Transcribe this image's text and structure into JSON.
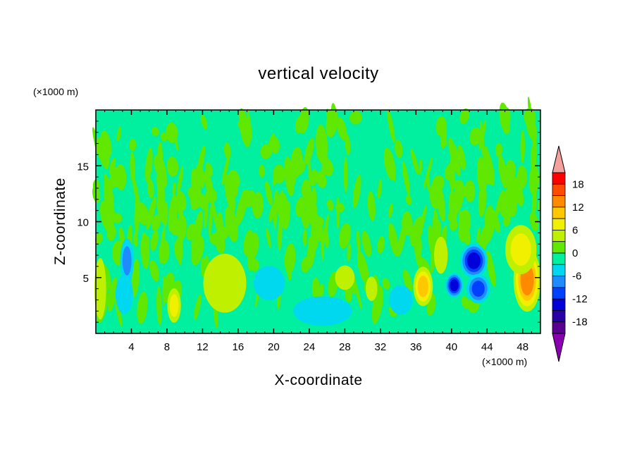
{
  "chart_data": {
    "type": "heatmap",
    "title": "vertical velocity",
    "xlabel": "X-coordinate",
    "ylabel": "Z-coordinate",
    "x_unit_label": "(×1000 m)",
    "y_unit_label": "(×1000 m)",
    "xlim": [
      0,
      50
    ],
    "ylim": [
      0,
      20
    ],
    "x_ticks": [
      4,
      8,
      12,
      16,
      20,
      24,
      28,
      32,
      36,
      40,
      44,
      48
    ],
    "x_tick_labels": [
      "4",
      "8",
      "12",
      "16",
      "20",
      "24",
      "28",
      "32",
      "36",
      "40",
      "44",
      "48"
    ],
    "y_ticks": [
      5,
      10,
      15
    ],
    "y_tick_labels": [
      "5",
      "10",
      "15"
    ],
    "colorbar": {
      "levels": [
        -21,
        -18,
        -15,
        -12,
        -9,
        -6,
        -3,
        0,
        3,
        6,
        9,
        12,
        15,
        18,
        21
      ],
      "labeled_values": [
        18,
        12,
        6,
        0,
        -6,
        -12,
        -18
      ],
      "labels": [
        "18",
        "12",
        "6",
        "0",
        "-6",
        "-12",
        "-18"
      ],
      "colors": [
        "#f4a09c",
        "#ff0000",
        "#ff4a00",
        "#ff8a00",
        "#ffc800",
        "#f0f000",
        "#bef000",
        "#60e800",
        "#00f0a0",
        "#00d8f0",
        "#1e8cff",
        "#0040ff",
        "#0000d8",
        "#2800a8",
        "#5a0090",
        "#8a00b0"
      ],
      "extend": "both"
    },
    "features": [
      {
        "x": 48.5,
        "z": 4.8,
        "value": 14,
        "sx": 1.4,
        "sz": 2.6
      },
      {
        "x": 47.8,
        "z": 7.5,
        "value": 6,
        "sx": 1.6,
        "sz": 2.0
      },
      {
        "x": 42.5,
        "z": 6.5,
        "value": -13,
        "sx": 1.4,
        "sz": 1.4
      },
      {
        "x": 40.3,
        "z": 4.3,
        "value": -12,
        "sx": 0.9,
        "sz": 1.0
      },
      {
        "x": 43.0,
        "z": 4.0,
        "value": -9,
        "sx": 1.2,
        "sz": 1.2
      },
      {
        "x": 36.8,
        "z": 4.2,
        "value": 10,
        "sx": 1.0,
        "sz": 1.6
      },
      {
        "x": 38.8,
        "z": 7.0,
        "value": 5,
        "sx": 0.7,
        "sz": 1.5
      },
      {
        "x": 34.3,
        "z": 3.0,
        "value": -4,
        "sx": 1.2,
        "sz": 1.2
      },
      {
        "x": 14.5,
        "z": 4.5,
        "value": 5,
        "sx": 2.2,
        "sz": 2.4
      },
      {
        "x": 8.8,
        "z": 2.5,
        "value": 6,
        "sx": 0.7,
        "sz": 1.4
      },
      {
        "x": 3.5,
        "z": 6.5,
        "value": -6,
        "sx": 0.7,
        "sz": 1.8
      },
      {
        "x": 3.2,
        "z": 3.5,
        "value": -4,
        "sx": 0.9,
        "sz": 1.6
      },
      {
        "x": 0.5,
        "z": 4.0,
        "value": 4,
        "sx": 0.6,
        "sz": 2.5
      },
      {
        "x": 19.5,
        "z": 4.5,
        "value": -4,
        "sx": 1.6,
        "sz": 1.4
      },
      {
        "x": 25.5,
        "z": 2.0,
        "value": -3,
        "sx": 3.0,
        "sz": 1.2
      },
      {
        "x": 28.0,
        "z": 5.0,
        "value": 3,
        "sx": 1.0,
        "sz": 1.0
      },
      {
        "x": 31.0,
        "z": 4.0,
        "value": 3,
        "sx": 0.6,
        "sz": 1.0
      }
    ]
  }
}
